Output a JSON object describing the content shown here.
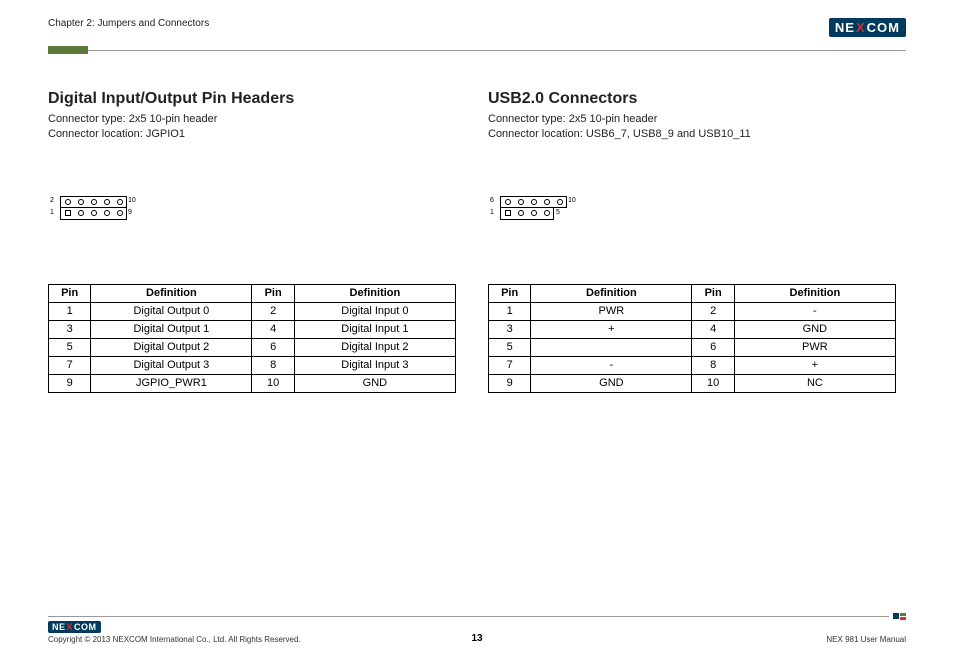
{
  "header": {
    "chapter": "Chapter 2: Jumpers and Connectors",
    "logo_text_left": "NE",
    "logo_text_x": "X",
    "logo_text_right": "COM"
  },
  "colors": {
    "header_bar": "#5c7a3a",
    "rule": "#999999",
    "logo_bg": "#003a5c",
    "logo_x": "#d42e2e",
    "footer_sq1": "#003a5c",
    "footer_sq2": "#5c7a3a",
    "footer_sq3": "#d42e2e"
  },
  "left": {
    "title": "Digital Input/Output Pin Headers",
    "line1": "Connector type: 2x5 10-pin header",
    "line2": "Connector location: JGPIO1",
    "diagram": {
      "top_cells": 5,
      "bottom_cells": 5,
      "label_top_left": "2",
      "label_top_right": "10",
      "label_bot_left": "1",
      "label_bot_right": "9",
      "pin1_shape": "square"
    },
    "table": {
      "headers": [
        "Pin",
        "Definition",
        "Pin",
        "Definition"
      ],
      "rows": [
        [
          "1",
          "Digital Output 0",
          "2",
          "Digital Input 0"
        ],
        [
          "3",
          "Digital Output 1",
          "4",
          "Digital Input 1"
        ],
        [
          "5",
          "Digital Output 2",
          "6",
          "Digital Input 2"
        ],
        [
          "7",
          "Digital Output 3",
          "8",
          "Digital Input 3"
        ],
        [
          "9",
          "JGPIO_PWR1",
          "10",
          "GND"
        ]
      ]
    }
  },
  "right": {
    "title": "USB2.0 Connectors",
    "line1": "Connector type: 2x5 10-pin header",
    "line2": "Connector location: USB6_7, USB8_9 and USB10_11",
    "diagram": {
      "top_cells": 5,
      "bottom_cells": 4,
      "label_top_left": "6",
      "label_top_right": "10",
      "label_bot_left": "1",
      "label_bot_right": "5",
      "pin1_shape": "square"
    },
    "table": {
      "headers": [
        "Pin",
        "Definition",
        "Pin",
        "Definition"
      ],
      "rows": [
        [
          "1",
          "PWR",
          "2",
          "-"
        ],
        [
          "3",
          "+",
          "4",
          "GND"
        ],
        [
          "5",
          "",
          "6",
          "PWR"
        ],
        [
          "7",
          "-",
          "8",
          "+"
        ],
        [
          "9",
          "GND",
          "10",
          "NC"
        ]
      ]
    }
  },
  "footer": {
    "copyright": "Copyright © 2013 NEXCOM International Co., Ltd. All Rights Reserved.",
    "page": "13",
    "manual": "NEX 981 User Manual"
  }
}
